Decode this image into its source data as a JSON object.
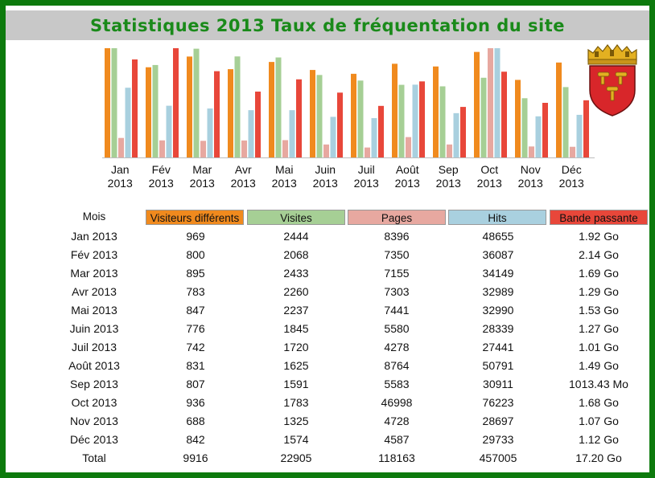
{
  "title": "Statistiques 2013 Taux de fréquentation du site",
  "chart_data": {
    "type": "bar",
    "categories": [
      [
        "Jan",
        "2013"
      ],
      [
        "Fév",
        "2013"
      ],
      [
        "Mar",
        "2013"
      ],
      [
        "Avr",
        "2013"
      ],
      [
        "Mai",
        "2013"
      ],
      [
        "Juin",
        "2013"
      ],
      [
        "Juil",
        "2013"
      ],
      [
        "Août",
        "2013"
      ],
      [
        "Sep",
        "2013"
      ],
      [
        "Oct",
        "2013"
      ],
      [
        "Nov",
        "2013"
      ],
      [
        "Déc",
        "2013"
      ]
    ],
    "series": [
      {
        "name": "Visiteurs différents",
        "color": "#f08a1e",
        "values": [
          969,
          800,
          895,
          783,
          847,
          776,
          742,
          831,
          807,
          936,
          688,
          842
        ]
      },
      {
        "name": "Visites",
        "color": "#a6cf95",
        "values": [
          2444,
          2068,
          2433,
          2260,
          2237,
          1845,
          1720,
          1625,
          1591,
          1783,
          1325,
          1574
        ]
      },
      {
        "name": "Pages",
        "color": "#e7a8a0",
        "values": [
          8396,
          7350,
          7155,
          7303,
          7441,
          5580,
          4278,
          8764,
          5583,
          46998,
          4728,
          4587
        ]
      },
      {
        "name": "Hits",
        "color": "#a9d0df",
        "values": [
          48655,
          36087,
          34149,
          32989,
          32990,
          28339,
          27441,
          50791,
          30911,
          76223,
          28697,
          29733
        ]
      },
      {
        "name": "Bande passante",
        "color": "#e8473a",
        "values": [
          1.92,
          2.14,
          1.69,
          1.29,
          1.53,
          1.27,
          1.01,
          1.49,
          0.99,
          1.68,
          1.07,
          1.12
        ]
      }
    ],
    "grid": false,
    "legend": "none"
  },
  "table": {
    "header_first": "Mois",
    "headers": [
      "Visiteurs différents",
      "Visites",
      "Pages",
      "Hits",
      "Bande passante"
    ],
    "header_colors": [
      "#f08a1e",
      "#a6cf95",
      "#e7a8a0",
      "#a9d0df",
      "#e8473a"
    ],
    "rows": [
      [
        "Jan 2013",
        "969",
        "2444",
        "8396",
        "48655",
        "1.92 Go"
      ],
      [
        "Fév 2013",
        "800",
        "2068",
        "7350",
        "36087",
        "2.14 Go"
      ],
      [
        "Mar 2013",
        "895",
        "2433",
        "7155",
        "34149",
        "1.69 Go"
      ],
      [
        "Avr 2013",
        "783",
        "2260",
        "7303",
        "32989",
        "1.29 Go"
      ],
      [
        "Mai 2013",
        "847",
        "2237",
        "7441",
        "32990",
        "1.53 Go"
      ],
      [
        "Juin 2013",
        "776",
        "1845",
        "5580",
        "28339",
        "1.27 Go"
      ],
      [
        "Juil 2013",
        "742",
        "1720",
        "4278",
        "27441",
        "1.01 Go"
      ],
      [
        "Août 2013",
        "831",
        "1625",
        "8764",
        "50791",
        "1.49 Go"
      ],
      [
        "Sep 2013",
        "807",
        "1591",
        "5583",
        "30911",
        "1013.43 Mo"
      ],
      [
        "Oct 2013",
        "936",
        "1783",
        "46998",
        "76223",
        "1.68 Go"
      ],
      [
        "Nov 2013",
        "688",
        "1325",
        "4728",
        "28697",
        "1.07 Go"
      ],
      [
        "Déc 2013",
        "842",
        "1574",
        "4587",
        "29733",
        "1.12 Go"
      ],
      [
        "Total",
        "9916",
        "22905",
        "118163",
        "457005",
        "17.20 Go"
      ]
    ]
  },
  "crest": {
    "icon": "coat-of-arms-icon",
    "shield_color": "#d8262a",
    "crown_color": "#e3b021"
  }
}
